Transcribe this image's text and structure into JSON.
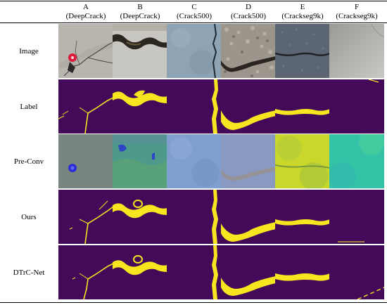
{
  "columns": [
    {
      "letter": "A",
      "dataset": "(DeepCrack)"
    },
    {
      "letter": "B",
      "dataset": "(DeepCrack)"
    },
    {
      "letter": "C",
      "dataset": "(Crack500)"
    },
    {
      "letter": "D",
      "dataset": "(Crack500)"
    },
    {
      "letter": "E",
      "dataset": "(Crackseg9k)"
    },
    {
      "letter": "F",
      "dataset": "(Crackseg9k)"
    }
  ],
  "rows": [
    {
      "label": "Image"
    },
    {
      "label": "Label"
    },
    {
      "label": "Pre-Conv"
    },
    {
      "label": "Ours"
    },
    {
      "label": "DTrC-Net"
    }
  ],
  "colors": {
    "mask_background": "#430a5a",
    "mask_crack": "#f7e51f"
  }
}
